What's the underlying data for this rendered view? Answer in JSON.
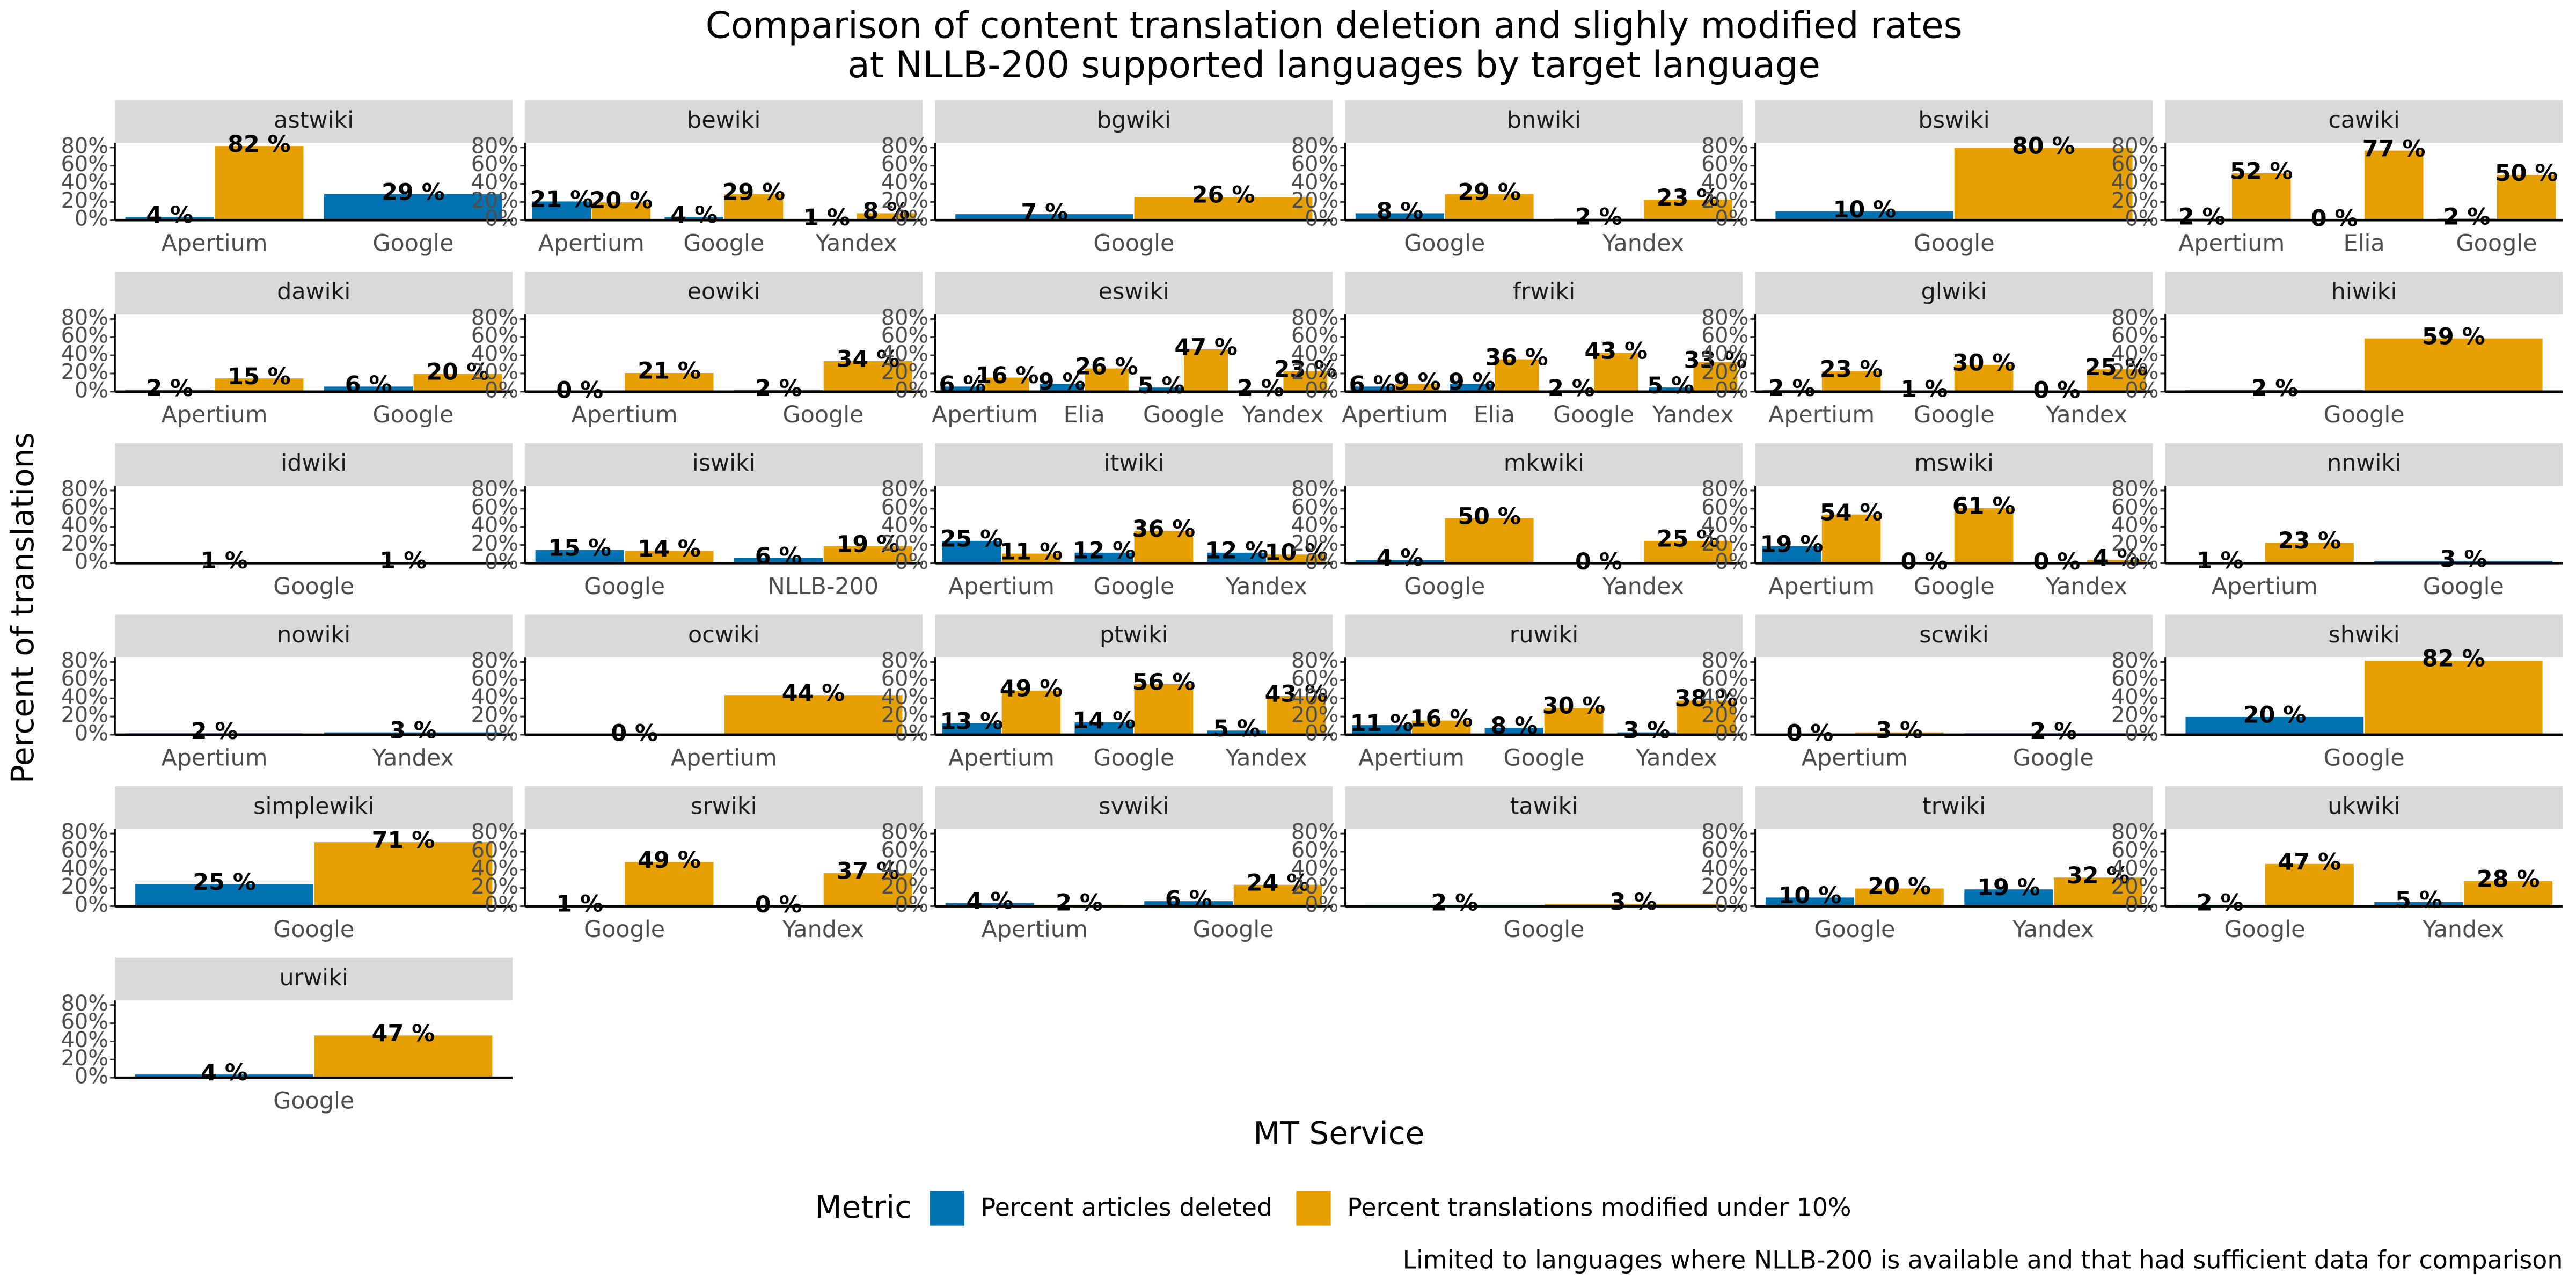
{
  "chart_data": {
    "type": "bar",
    "title": "Comparison of content translation deletion and slighly modified rates",
    "subtitle": "at NLLB-200 supported languages by target language",
    "x_label": "MT Service",
    "y_label": "Percent of translations",
    "legend_title": "Metric",
    "caption": "Limited to languages where NLLB-200 is available and that had sufficient data for comparison",
    "series": [
      {
        "name": "Percent articles deleted",
        "color": "#0072b2"
      },
      {
        "name": "Percent translations modified under 10%",
        "color": "#e69f00"
      }
    ],
    "ylim": [
      0,
      85
    ],
    "yticks": [
      {
        "value": 0,
        "label": "0%"
      },
      {
        "value": 20,
        "label": "20%"
      },
      {
        "value": 40,
        "label": "40%"
      },
      {
        "value": 60,
        "label": "60%"
      },
      {
        "value": 80,
        "label": "80%"
      }
    ],
    "facets": [
      {
        "title": "astwiki",
        "categories": [
          "Apertium",
          "Google"
        ],
        "values": [
          [
            4,
            29
          ],
          [
            82,
            null
          ]
        ],
        "value_labels": [
          [
            "4 %",
            "29 %"
          ],
          [
            "82 %",
            null
          ]
        ]
      },
      {
        "title": "bewiki",
        "categories": [
          "Apertium",
          "Google",
          "Yandex"
        ],
        "values": [
          [
            21,
            4,
            1
          ],
          [
            20,
            29,
            8
          ]
        ],
        "value_labels": [
          [
            "21 %",
            "4 %",
            "1 %"
          ],
          [
            "20 %",
            "29 %",
            "8 %"
          ]
        ]
      },
      {
        "title": "bgwiki",
        "categories": [
          "Google"
        ],
        "values": [
          [
            7
          ],
          [
            26
          ]
        ],
        "value_labels": [
          [
            "7 %"
          ],
          [
            "26 %"
          ]
        ]
      },
      {
        "title": "bnwiki",
        "categories": [
          "Google",
          "Yandex"
        ],
        "values": [
          [
            8,
            2
          ],
          [
            29,
            23
          ]
        ],
        "value_labels": [
          [
            "8 %",
            "2 %"
          ],
          [
            "29 %",
            "23 %"
          ]
        ]
      },
      {
        "title": "bswiki",
        "categories": [
          "Google"
        ],
        "values": [
          [
            10
          ],
          [
            80
          ]
        ],
        "value_labels": [
          [
            "10 %"
          ],
          [
            "80 %"
          ]
        ]
      },
      {
        "title": "cawiki",
        "categories": [
          "Apertium",
          "Elia",
          "Google"
        ],
        "values": [
          [
            2,
            0,
            2
          ],
          [
            52,
            77,
            50
          ]
        ],
        "value_labels": [
          [
            "2 %",
            "0 %",
            "2 %"
          ],
          [
            "52 %",
            "77 %",
            "50 %"
          ]
        ]
      },
      {
        "title": "dawiki",
        "categories": [
          "Apertium",
          "Google"
        ],
        "values": [
          [
            2,
            6
          ],
          [
            15,
            20
          ]
        ],
        "value_labels": [
          [
            "2 %",
            "6 %"
          ],
          [
            "15 %",
            "20 %"
          ]
        ]
      },
      {
        "title": "eowiki",
        "categories": [
          "Apertium",
          "Google"
        ],
        "values": [
          [
            0,
            2
          ],
          [
            21,
            34
          ]
        ],
        "value_labels": [
          [
            "0 %",
            "2 %"
          ],
          [
            "21 %",
            "34 %"
          ]
        ]
      },
      {
        "title": "eswiki",
        "categories": [
          "Apertium",
          "Elia",
          "Google",
          "Yandex"
        ],
        "values": [
          [
            6,
            9,
            5,
            2
          ],
          [
            16,
            26,
            47,
            23
          ]
        ],
        "value_labels": [
          [
            "6 %",
            "9 %",
            "5 %",
            "2 %"
          ],
          [
            "16 %",
            "26 %",
            "47 %",
            "23 %"
          ]
        ]
      },
      {
        "title": "frwiki",
        "categories": [
          "Apertium",
          "Elia",
          "Google",
          "Yandex"
        ],
        "values": [
          [
            6,
            9,
            2,
            5
          ],
          [
            9,
            36,
            43,
            33
          ]
        ],
        "value_labels": [
          [
            "6 %",
            "9 %",
            "2 %",
            "5 %"
          ],
          [
            "9 %",
            "36 %",
            "43 %",
            "33 %"
          ]
        ]
      },
      {
        "title": "glwiki",
        "categories": [
          "Apertium",
          "Google",
          "Yandex"
        ],
        "values": [
          [
            2,
            1,
            0
          ],
          [
            23,
            30,
            25
          ]
        ],
        "value_labels": [
          [
            "2 %",
            "1 %",
            "0 %"
          ],
          [
            "23 %",
            "30 %",
            "25 %"
          ]
        ]
      },
      {
        "title": "hiwiki",
        "categories": [
          "Google"
        ],
        "values": [
          [
            2
          ],
          [
            59
          ]
        ],
        "value_labels": [
          [
            "2 %"
          ],
          [
            "59 %"
          ]
        ]
      },
      {
        "title": "idwiki",
        "categories": [
          "Google"
        ],
        "values": [
          [
            1
          ],
          [
            1
          ]
        ],
        "value_labels": [
          [
            "1 %"
          ],
          [
            "1 %"
          ]
        ]
      },
      {
        "title": "iswiki",
        "categories": [
          "Google",
          "NLLB-200"
        ],
        "values": [
          [
            15,
            6
          ],
          [
            14,
            19
          ]
        ],
        "value_labels": [
          [
            "15 %",
            "6 %"
          ],
          [
            "14 %",
            "19 %"
          ]
        ]
      },
      {
        "title": "itwiki",
        "categories": [
          "Apertium",
          "Google",
          "Yandex"
        ],
        "values": [
          [
            25,
            12,
            12
          ],
          [
            11,
            36,
            10
          ]
        ],
        "value_labels": [
          [
            "25 %",
            "12 %",
            "12 %"
          ],
          [
            "11 %",
            "36 %",
            "10 %"
          ]
        ]
      },
      {
        "title": "mkwiki",
        "categories": [
          "Google",
          "Yandex"
        ],
        "values": [
          [
            4,
            0
          ],
          [
            50,
            25
          ]
        ],
        "value_labels": [
          [
            "4 %",
            "0 %"
          ],
          [
            "50 %",
            "25 %"
          ]
        ]
      },
      {
        "title": "mswiki",
        "categories": [
          "Apertium",
          "Google",
          "Yandex"
        ],
        "values": [
          [
            19,
            0,
            0
          ],
          [
            54,
            61,
            4
          ]
        ],
        "value_labels": [
          [
            "19 %",
            "0 %",
            "0 %"
          ],
          [
            "54 %",
            "61 %",
            "4 %"
          ]
        ]
      },
      {
        "title": "nnwiki",
        "categories": [
          "Apertium",
          "Google"
        ],
        "values": [
          [
            1,
            3
          ],
          [
            23,
            null
          ]
        ],
        "value_labels": [
          [
            "1 %",
            "3 %"
          ],
          [
            "23 %",
            null
          ]
        ]
      },
      {
        "title": "nowiki",
        "categories": [
          "Apertium",
          "Yandex"
        ],
        "values": [
          [
            2,
            3
          ],
          [
            null,
            null
          ]
        ],
        "value_labels": [
          [
            "2 %",
            "3 %"
          ],
          [
            null,
            null
          ]
        ]
      },
      {
        "title": "ocwiki",
        "categories": [
          "Apertium"
        ],
        "values": [
          [
            0
          ],
          [
            44
          ]
        ],
        "value_labels": [
          [
            "0 %"
          ],
          [
            "44 %"
          ]
        ]
      },
      {
        "title": "ptwiki",
        "categories": [
          "Apertium",
          "Google",
          "Yandex"
        ],
        "values": [
          [
            13,
            14,
            5
          ],
          [
            49,
            56,
            43
          ]
        ],
        "value_labels": [
          [
            "13 %",
            "14 %",
            "5 %"
          ],
          [
            "49 %",
            "56 %",
            "43 %"
          ]
        ]
      },
      {
        "title": "ruwiki",
        "categories": [
          "Apertium",
          "Google",
          "Yandex"
        ],
        "values": [
          [
            11,
            8,
            3
          ],
          [
            16,
            30,
            38
          ]
        ],
        "value_labels": [
          [
            "11 %",
            "8 %",
            "3 %"
          ],
          [
            "16 %",
            "30 %",
            "38 %"
          ]
        ]
      },
      {
        "title": "scwiki",
        "categories": [
          "Apertium",
          "Google"
        ],
        "values": [
          [
            0,
            2
          ],
          [
            3,
            null
          ]
        ],
        "value_labels": [
          [
            "0 %",
            "2 %"
          ],
          [
            "3 %",
            null
          ]
        ]
      },
      {
        "title": "shwiki",
        "categories": [
          "Google"
        ],
        "values": [
          [
            20
          ],
          [
            82
          ]
        ],
        "value_labels": [
          [
            "20 %"
          ],
          [
            "82 %"
          ]
        ]
      },
      {
        "title": "simplewiki",
        "categories": [
          "Google"
        ],
        "values": [
          [
            25
          ],
          [
            71
          ]
        ],
        "value_labels": [
          [
            "25 %"
          ],
          [
            "71 %"
          ]
        ]
      },
      {
        "title": "srwiki",
        "categories": [
          "Google",
          "Yandex"
        ],
        "values": [
          [
            1,
            0
          ],
          [
            49,
            37
          ]
        ],
        "value_labels": [
          [
            "1 %",
            "0 %"
          ],
          [
            "49 %",
            "37 %"
          ]
        ]
      },
      {
        "title": "svwiki",
        "categories": [
          "Apertium",
          "Google"
        ],
        "values": [
          [
            4,
            6
          ],
          [
            2,
            24
          ]
        ],
        "value_labels": [
          [
            "4 %",
            "6 %"
          ],
          [
            "2 %",
            "24 %"
          ]
        ]
      },
      {
        "title": "tawiki",
        "categories": [
          "Google"
        ],
        "values": [
          [
            2
          ],
          [
            3
          ]
        ],
        "value_labels": [
          [
            "2 %"
          ],
          [
            "3 %"
          ]
        ]
      },
      {
        "title": "trwiki",
        "categories": [
          "Google",
          "Yandex"
        ],
        "values": [
          [
            10,
            19
          ],
          [
            20,
            32
          ]
        ],
        "value_labels": [
          [
            "10 %",
            "19 %"
          ],
          [
            "20 %",
            "32 %"
          ]
        ]
      },
      {
        "title": "ukwiki",
        "categories": [
          "Google",
          "Yandex"
        ],
        "values": [
          [
            2,
            5
          ],
          [
            47,
            28
          ]
        ],
        "value_labels": [
          [
            "2 %",
            "5 %"
          ],
          [
            "47 %",
            "28 %"
          ]
        ]
      },
      {
        "title": "urwiki",
        "categories": [
          "Google"
        ],
        "values": [
          [
            4
          ],
          [
            47
          ]
        ],
        "value_labels": [
          [
            "4 %"
          ],
          [
            "47 %"
          ]
        ]
      }
    ]
  }
}
